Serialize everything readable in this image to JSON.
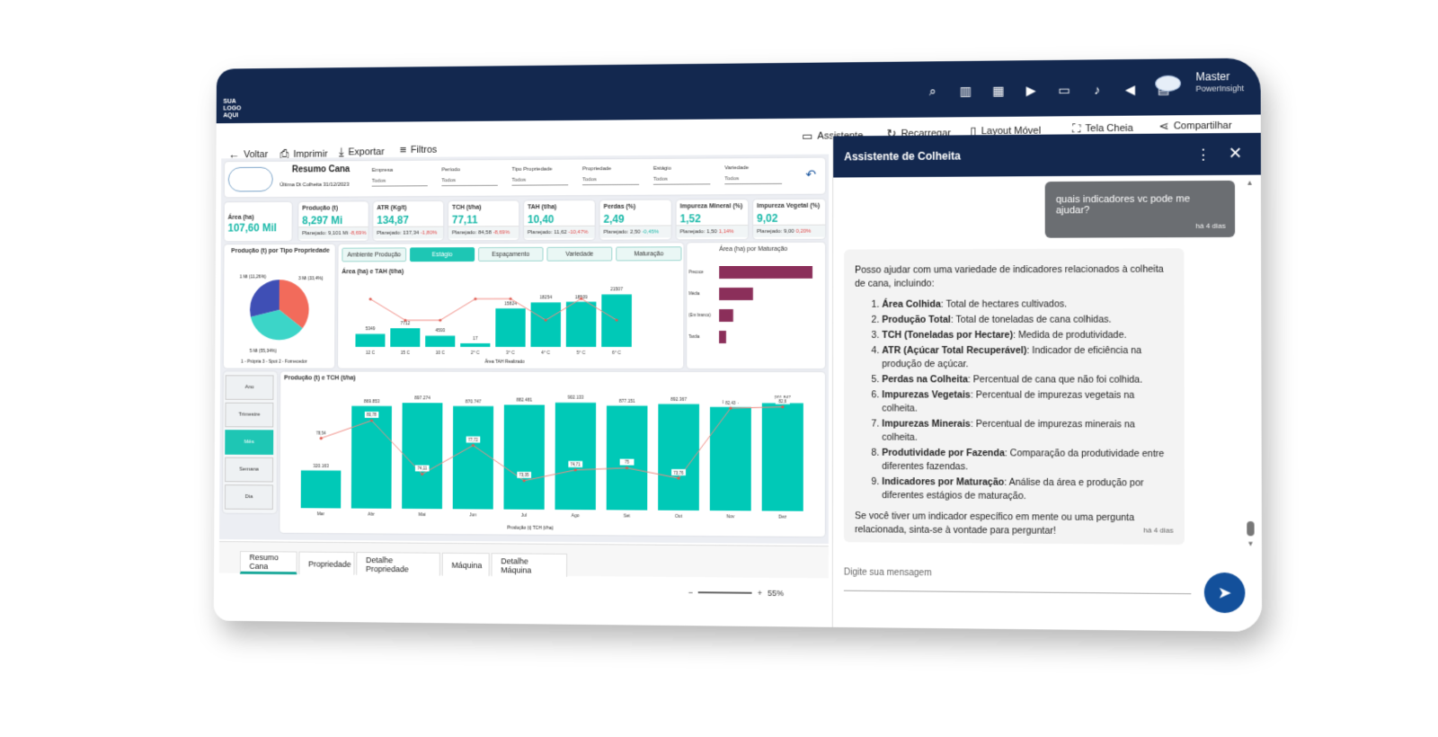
{
  "brand": {
    "logo_text": "SUA LOGO AQUI"
  },
  "topbar": {
    "user_name": "Master",
    "user_sub": "PowerInsight",
    "icons": [
      "search-icon",
      "chart-icon",
      "dashboard-icon",
      "video-icon",
      "chat-icon",
      "bell-icon",
      "megaphone-icon",
      "building-icon"
    ]
  },
  "actions": {
    "assistant": "Assistente",
    "reload": "Recarregar",
    "mobile": "Layout Móvel",
    "fullscreen": "Tela Cheia",
    "share": "Compartilhar"
  },
  "toolbar": {
    "back": "Voltar",
    "print": "Imprimir",
    "export": "Exportar",
    "filters": "Filtros"
  },
  "report": {
    "title": "Resumo Cana",
    "last_date": "Última Dt Colheita 31/12/2023"
  },
  "filters": [
    {
      "label": "Empresa",
      "value": "Todos"
    },
    {
      "label": "Período",
      "value": "Todos"
    },
    {
      "label": "Tipo Propriedade",
      "value": "Todos"
    },
    {
      "label": "Propriedade",
      "value": "Todos"
    },
    {
      "label": "Estágio",
      "value": "Todos"
    },
    {
      "label": "Variedade",
      "value": "Todos"
    }
  ],
  "kpis": [
    {
      "title": "Área (ha)",
      "value": "107,60 Mil",
      "plan": "",
      "delta": ""
    },
    {
      "title": "Produção (t)",
      "value": "8,297 Mi",
      "plan": "Planejado: 9,101 Mi ",
      "delta": "-8,69%"
    },
    {
      "title": "ATR (Kg/t)",
      "value": "134,87",
      "plan": "Planejado: 137,34 ",
      "delta": "-1,80%"
    },
    {
      "title": "TCH (t/ha)",
      "value": "77,11",
      "plan": "Planejado: 84,58 ",
      "delta": "-8,69%"
    },
    {
      "title": "TAH (t/ha)",
      "value": "10,40",
      "plan": "Planejado: 11,62 ",
      "delta": "-10,47%"
    },
    {
      "title": "Perdas (%)",
      "value": "2,49",
      "plan": "Planejado: 2,50 ",
      "delta": "-0,45%"
    },
    {
      "title": "Impureza Mineral (%)",
      "value": "1,52",
      "plan": "Planejado: 1,50 ",
      "delta": "1,14%"
    },
    {
      "title": "Impureza Vegetal (%)",
      "value": "9,02",
      "plan": "Planejado: 9,00 ",
      "delta": "0,20%"
    }
  ],
  "pie": {
    "title": "Produção (t) por Tipo Propriedade",
    "labels": [
      "1 Mi (11,26%)",
      "3 Mi (33,4%)",
      "5 Mi (55,34%)"
    ],
    "legend": "1 - Própria  3 - Spot  2 - Fornecedor"
  },
  "tabs": [
    "Ambiente Produção",
    "Estágio",
    "Espaçamento",
    "Variedade",
    "Maturação"
  ],
  "combo1": {
    "title": "Área (ha) e TAH (t/ha)",
    "legend": "Área  TAH Realizado"
  },
  "hbar": {
    "title": "Área (ha) por Maturação"
  },
  "combo2": {
    "title": "Produção (t) e TCH (t/ha)",
    "legend": "Produção (t)  TCH (t/ha)"
  },
  "segments": [
    "Ano",
    "Trimestre",
    "Mês",
    "Semana",
    "Dia"
  ],
  "chart_data": [
    {
      "type": "bar",
      "title": "Área (ha) e TAH (t/ha)",
      "categories": [
        "12 C",
        "15 C",
        "10 C",
        "2° C",
        "3° C",
        "4° C",
        "5° C",
        "6° C"
      ],
      "series": [
        {
          "name": "Área",
          "values": [
            5349,
            7712,
            4593,
            17,
            15824,
            18254,
            18509,
            21507
          ]
        },
        {
          "name": "TAH Realizado",
          "values": [
            11,
            10,
            10,
            11,
            11,
            10,
            11,
            10
          ]
        }
      ]
    },
    {
      "type": "bar",
      "title": "Área (ha) por Maturação",
      "categories": [
        "Precoce",
        "Média",
        "(Em branco)",
        "Tardia"
      ],
      "values": [
        66,
        24,
        10,
        5
      ]
    },
    {
      "type": "bar",
      "title": "Produção (t) e TCH (t/ha)",
      "categories": [
        "Mar",
        "Abr",
        "Mai",
        "Jun",
        "Jul",
        "Ago",
        "Set",
        "Out",
        "Nov",
        "Dez"
      ],
      "series": [
        {
          "name": "Produção (t)",
          "values": [
            320163,
            869853,
            897274,
            870747,
            882481,
            902133,
            877151,
            892367,
            868771,
            901847
          ]
        },
        {
          "name": "TCH (t/ha)",
          "values": [
            78.54,
            80.78,
            74.11,
            77.72,
            73.35,
            74.71,
            75.0,
            73.76,
            82.43,
            82.6
          ]
        }
      ]
    }
  ],
  "bottom_tabs": [
    "Resumo Cana",
    "Propriedade",
    "Detalhe Propriedade",
    "Máquina",
    "Detalhe Máquina"
  ],
  "zoom": "55%",
  "assistant": {
    "title": "Assistente de Colheita",
    "user_message": "quais indicadores vc pode me ajudar?",
    "user_time": "há 4 dias",
    "bot_intro": "Posso ajudar com uma variedade de indicadores relacionados à colheita de cana, incluindo:",
    "items": [
      {
        "b": "Área Colhida",
        "t": ": Total de hectares cultivados."
      },
      {
        "b": "Produção Total",
        "t": ": Total de toneladas de cana colhidas."
      },
      {
        "b": "TCH (Toneladas por Hectare)",
        "t": ": Medida de produtividade."
      },
      {
        "b": "ATR (Açúcar Total Recuperável)",
        "t": ": Indicador de eficiência na produção de açúcar."
      },
      {
        "b": "Perdas na Colheita",
        "t": ": Percentual de cana que não foi colhida."
      },
      {
        "b": "Impurezas Vegetais",
        "t": ": Percentual de impurezas vegetais na colheita."
      },
      {
        "b": "Impurezas Minerais",
        "t": ": Percentual de impurezas minerais na colheita."
      },
      {
        "b": "Produtividade por Fazenda",
        "t": ": Comparação da produtividade entre diferentes fazendas."
      },
      {
        "b": "Indicadores por Maturação",
        "t": ": Análise da área e produção por diferentes estágios de maturação."
      }
    ],
    "bot_outro": "Se você tiver um indicador específico em mente ou uma pergunta relacionada, sinta-se à vontade para perguntar!",
    "bot_time": "há 4 dias",
    "placeholder": "Digite sua mensagem"
  }
}
